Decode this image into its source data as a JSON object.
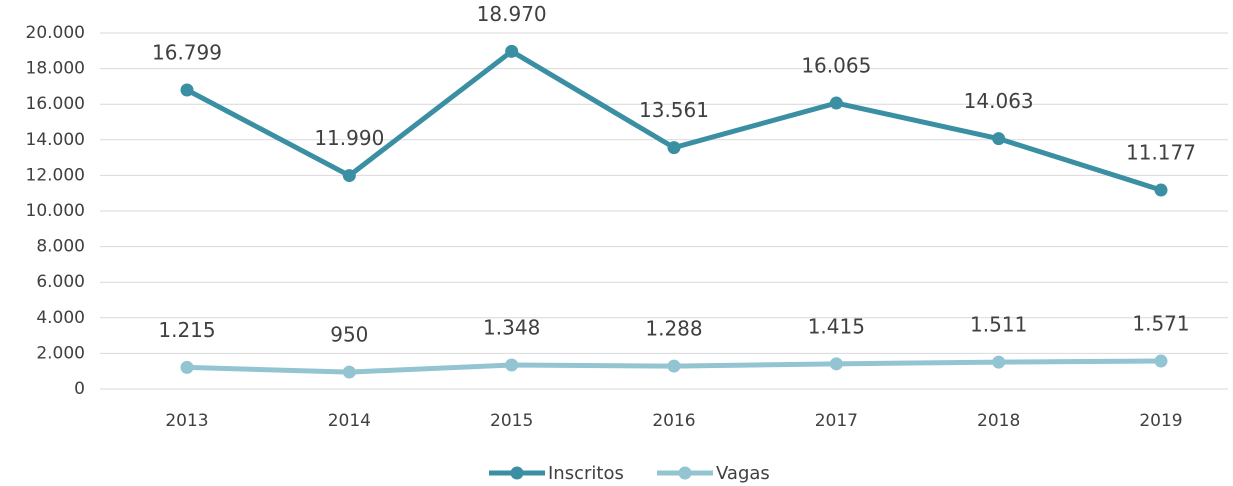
{
  "chart_data": {
    "type": "line",
    "categories": [
      "2013",
      "2014",
      "2015",
      "2016",
      "2017",
      "2018",
      "2019"
    ],
    "series": [
      {
        "name": "Inscritos",
        "color": "#3a8fa3",
        "values": [
          16799,
          11990,
          18970,
          13561,
          16065,
          14063,
          11177
        ],
        "value_labels": [
          "16.799",
          "11.990",
          "18.970",
          "13.561",
          "16.065",
          "14.063",
          "11.177"
        ]
      },
      {
        "name": "Vagas",
        "color": "#93c4d2",
        "values": [
          1215,
          950,
          1348,
          1288,
          1415,
          1511,
          1571
        ],
        "value_labels": [
          "1.215",
          "950",
          "1.348",
          "1.288",
          "1.415",
          "1.511",
          "1.571"
        ]
      }
    ],
    "ylim": [
      0,
      20000
    ],
    "yticks": [
      0,
      {
        "value": 2000,
        "label": "2.000"
      },
      {
        "value": 4000,
        "label": "4.000"
      },
      {
        "value": 6000,
        "label": "6.000"
      },
      {
        "value": 8000,
        "label": "8.000"
      },
      {
        "value": 10000,
        "label": "10.000"
      },
      {
        "value": 12000,
        "label": "12.000"
      },
      {
        "value": 14000,
        "label": "14.000"
      },
      {
        "value": 16000,
        "label": "16.000"
      },
      {
        "value": 18000,
        "label": "18.000"
      },
      {
        "value": 20000,
        "label": "20.000"
      }
    ],
    "grid": true,
    "legend": "bottom"
  }
}
